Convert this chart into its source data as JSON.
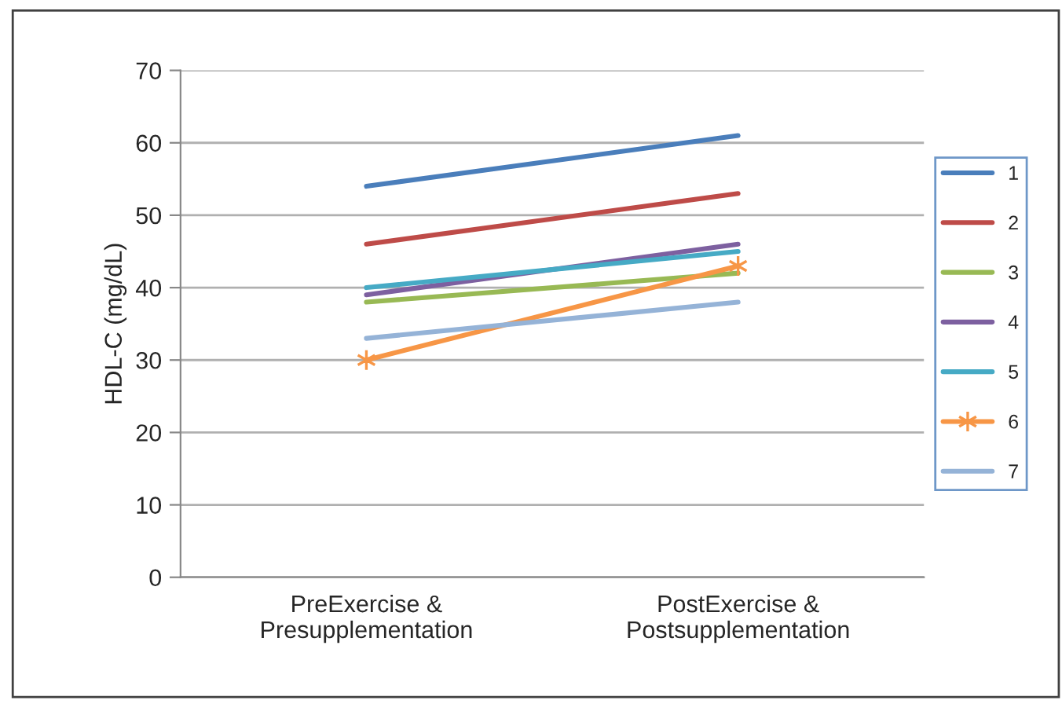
{
  "chart_data": {
    "type": "line",
    "ylabel": "HDL-C (mg/dL)",
    "categories": [
      "PreExercise &\nPresupplementation",
      "PostExercise &\nPostsupplementation"
    ],
    "series": [
      {
        "name": "1",
        "color": "#4a7ebb",
        "values": [
          54,
          61
        ]
      },
      {
        "name": "2",
        "color": "#be4b48",
        "values": [
          46,
          53
        ]
      },
      {
        "name": "3",
        "color": "#98b954",
        "values": [
          38,
          42
        ]
      },
      {
        "name": "4",
        "color": "#7d60a0",
        "values": [
          39,
          46
        ]
      },
      {
        "name": "5",
        "color": "#46aac5",
        "values": [
          40,
          45
        ]
      },
      {
        "name": "6",
        "color": "#f79646",
        "values": [
          30,
          43
        ],
        "marker": "cross"
      },
      {
        "name": "7",
        "color": "#95b3d7",
        "values": [
          33,
          38
        ]
      }
    ],
    "ylim": [
      0,
      70
    ],
    "yticks": [
      0,
      10,
      20,
      30,
      40,
      50,
      60,
      70
    ],
    "grid": "y",
    "legend": "right"
  }
}
